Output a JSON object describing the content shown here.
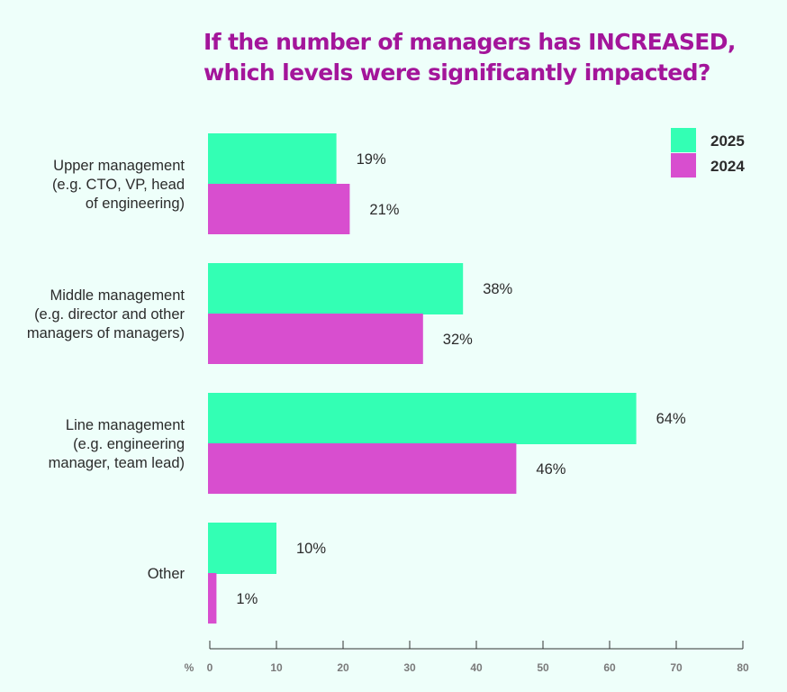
{
  "chart_data": {
    "type": "bar",
    "orientation": "horizontal",
    "title_lines": [
      "If the number of managers has INCREASED,",
      "which levels were significantly impacted?"
    ],
    "categories": [
      [
        "Upper management",
        "(e.g. CTO, VP, head",
        "of engineering)"
      ],
      [
        "Middle management",
        "(e.g. director and other",
        "managers of managers)"
      ],
      [
        "Line management",
        "(e.g. engineering",
        "manager, team lead)"
      ],
      [
        "Other"
      ]
    ],
    "series": [
      {
        "name": "2025",
        "color": "#33FFB4",
        "values": [
          19,
          38,
          64,
          10
        ],
        "labels": [
          "19%",
          "38%",
          "64%",
          "10%"
        ]
      },
      {
        "name": "2024",
        "color": "#D84ECF",
        "values": [
          21,
          32,
          46,
          1
        ],
        "labels": [
          "21%",
          "32%",
          "46%",
          "1%"
        ]
      }
    ],
    "xlim": [
      0,
      80
    ],
    "xticks": [
      0,
      10,
      20,
      30,
      40,
      50,
      60,
      70,
      80
    ],
    "xlabel": "%",
    "legend_position": "top-right",
    "grid": false
  },
  "colors": {
    "background": "#EEFFFA",
    "title": "#A3159A",
    "text": "#2B2B2B",
    "axis_label": "#7A7A7A"
  }
}
